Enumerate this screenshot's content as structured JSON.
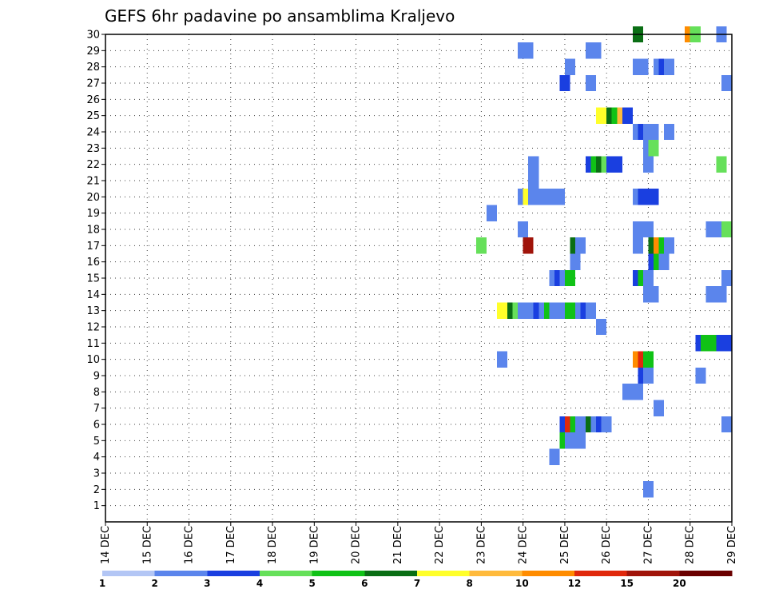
{
  "chart_data": {
    "type": "heatmap",
    "title": "GEFS 6hr padavine po ansamblima Kraljevo",
    "xlabel": "",
    "ylabel": "",
    "y_ticks": [
      1,
      2,
      3,
      4,
      5,
      6,
      7,
      8,
      9,
      10,
      11,
      12,
      13,
      14,
      15,
      16,
      17,
      18,
      19,
      20,
      21,
      22,
      23,
      24,
      25,
      26,
      27,
      28,
      29,
      30
    ],
    "x_tick_labels": [
      "14 DEC",
      "15 DEC",
      "16 DEC",
      "17 DEC",
      "18 DEC",
      "19 DEC",
      "20 DEC",
      "21 DEC",
      "22 DEC",
      "23 DEC",
      "24 DEC",
      "25 DEC",
      "26 DEC",
      "27 DEC",
      "28 DEC",
      "29 DEC"
    ],
    "x_range_days": [
      0,
      15
    ],
    "y_range": [
      0,
      30
    ],
    "cell_width_days": 0.25,
    "colorbar": {
      "colors": [
        "#b3c6f5",
        "#5b85ec",
        "#1a3fe0",
        "#66e05a",
        "#10c216",
        "#0a6e14",
        "#ffff2a",
        "#ffba3c",
        "#ff8c00",
        "#e0280c",
        "#a0140a",
        "#6a0000"
      ],
      "labels": [
        "1",
        "2",
        "3",
        "4",
        "5",
        "6",
        "7",
        "8",
        "10",
        "12",
        "15",
        "20"
      ]
    },
    "cells": [
      [
        30,
        12.625,
        5
      ],
      [
        30,
        13.875,
        8
      ],
      [
        30,
        14.0,
        3
      ],
      [
        30,
        14.625,
        1
      ],
      [
        29,
        9.875,
        1
      ],
      [
        29,
        10.0,
        1
      ],
      [
        29,
        11.5,
        1
      ],
      [
        29,
        11.625,
        1
      ],
      [
        28,
        11.0,
        1
      ],
      [
        28,
        12.625,
        1
      ],
      [
        28,
        12.75,
        1
      ],
      [
        28,
        13.125,
        1
      ],
      [
        28,
        13.25,
        2
      ],
      [
        28,
        13.375,
        1
      ],
      [
        27,
        10.875,
        2
      ],
      [
        27,
        11.5,
        1
      ],
      [
        27,
        14.75,
        1
      ],
      [
        25,
        11.75,
        6
      ],
      [
        25,
        12.0,
        5
      ],
      [
        25,
        12.125,
        4
      ],
      [
        25,
        12.25,
        7
      ],
      [
        25,
        12.375,
        2
      ],
      [
        24,
        12.625,
        1
      ],
      [
        24,
        12.75,
        2
      ],
      [
        24,
        12.875,
        1
      ],
      [
        24,
        13.0,
        1
      ],
      [
        24,
        13.375,
        1
      ],
      [
        23,
        12.875,
        1
      ],
      [
        23,
        13.0,
        3
      ],
      [
        22,
        10.125,
        1
      ],
      [
        22,
        11.5,
        2
      ],
      [
        22,
        11.625,
        4
      ],
      [
        22,
        11.75,
        5
      ],
      [
        22,
        11.875,
        3
      ],
      [
        22,
        12.0,
        2
      ],
      [
        22,
        12.125,
        2
      ],
      [
        22,
        12.875,
        1
      ],
      [
        22,
        14.625,
        3
      ],
      [
        21,
        10.125,
        1
      ],
      [
        20,
        10.125,
        1
      ],
      [
        20,
        10.25,
        1
      ],
      [
        20,
        10.375,
        1
      ],
      [
        20,
        10.5,
        1
      ],
      [
        20,
        10.625,
        1
      ],
      [
        20,
        10.75,
        1
      ],
      [
        20,
        9.875,
        1
      ],
      [
        20,
        10.0,
        6
      ],
      [
        20,
        10.125,
        1
      ],
      [
        20,
        12.625,
        1
      ],
      [
        20,
        12.75,
        2
      ],
      [
        20,
        12.875,
        2
      ],
      [
        20,
        13.0,
        2
      ],
      [
        19,
        9.125,
        1
      ],
      [
        18,
        9.875,
        1
      ],
      [
        18,
        12.625,
        1
      ],
      [
        18,
        12.75,
        1
      ],
      [
        18,
        12.875,
        1
      ],
      [
        18,
        14.375,
        1
      ],
      [
        18,
        14.5,
        1
      ],
      [
        18,
        14.625,
        1
      ],
      [
        18,
        14.75,
        3
      ],
      [
        17,
        8.875,
        3
      ],
      [
        17,
        10.0,
        10
      ],
      [
        17,
        11.125,
        5
      ],
      [
        17,
        11.25,
        1
      ],
      [
        17,
        12.625,
        1
      ],
      [
        17,
        13.0,
        5
      ],
      [
        17,
        13.125,
        8
      ],
      [
        17,
        13.25,
        4
      ],
      [
        17,
        13.375,
        1
      ],
      [
        16,
        11.125,
        1
      ],
      [
        16,
        13.0,
        2
      ],
      [
        16,
        13.125,
        4
      ],
      [
        16,
        13.25,
        1
      ],
      [
        15,
        10.625,
        1
      ],
      [
        15,
        10.75,
        2
      ],
      [
        15,
        10.875,
        1
      ],
      [
        15,
        11.0,
        4
      ],
      [
        15,
        12.625,
        2
      ],
      [
        15,
        12.75,
        4
      ],
      [
        15,
        12.875,
        1
      ],
      [
        15,
        14.75,
        1
      ],
      [
        14,
        12.875,
        1
      ],
      [
        14,
        13.0,
        1
      ],
      [
        14,
        14.375,
        1
      ],
      [
        14,
        14.5,
        1
      ],
      [
        14,
        14.625,
        1
      ],
      [
        13,
        9.375,
        6
      ],
      [
        13,
        9.5,
        6
      ],
      [
        13,
        9.625,
        5
      ],
      [
        13,
        9.75,
        3
      ],
      [
        13,
        9.875,
        1
      ],
      [
        13,
        10.0,
        1
      ],
      [
        13,
        10.125,
        1
      ],
      [
        13,
        10.25,
        2
      ],
      [
        13,
        10.375,
        1
      ],
      [
        13,
        10.5,
        4
      ],
      [
        13,
        10.625,
        1
      ],
      [
        13,
        10.75,
        1
      ],
      [
        13,
        10.875,
        1
      ],
      [
        13,
        11.0,
        4
      ],
      [
        13,
        11.125,
        4
      ],
      [
        13,
        11.25,
        1
      ],
      [
        13,
        11.375,
        2
      ],
      [
        13,
        11.5,
        1
      ],
      [
        12,
        11.75,
        1
      ],
      [
        11,
        14.125,
        2
      ],
      [
        11,
        14.25,
        4
      ],
      [
        11,
        14.375,
        4
      ],
      [
        11,
        14.5,
        4
      ],
      [
        11,
        14.625,
        2
      ],
      [
        11,
        14.75,
        2
      ],
      [
        10,
        9.375,
        1
      ],
      [
        10,
        12.625,
        8
      ],
      [
        10,
        12.75,
        9
      ],
      [
        10,
        12.875,
        4
      ],
      [
        9,
        12.75,
        2
      ],
      [
        9,
        12.875,
        1
      ],
      [
        9,
        14.125,
        1
      ],
      [
        8,
        12.375,
        1
      ],
      [
        8,
        12.5,
        1
      ],
      [
        8,
        12.625,
        1
      ],
      [
        7,
        13.125,
        1
      ],
      [
        6,
        10.875,
        2
      ],
      [
        6,
        11.0,
        9
      ],
      [
        6,
        11.125,
        4
      ],
      [
        6,
        11.25,
        1
      ],
      [
        6,
        11.5,
        5
      ],
      [
        6,
        11.625,
        1
      ],
      [
        6,
        11.75,
        2
      ],
      [
        6,
        11.875,
        1
      ],
      [
        6,
        14.75,
        1
      ],
      [
        5,
        10.875,
        4
      ],
      [
        5,
        11.0,
        1
      ],
      [
        5,
        11.125,
        1
      ],
      [
        5,
        11.25,
        1
      ],
      [
        4,
        10.625,
        1
      ],
      [
        2,
        12.875,
        1
      ]
    ]
  }
}
